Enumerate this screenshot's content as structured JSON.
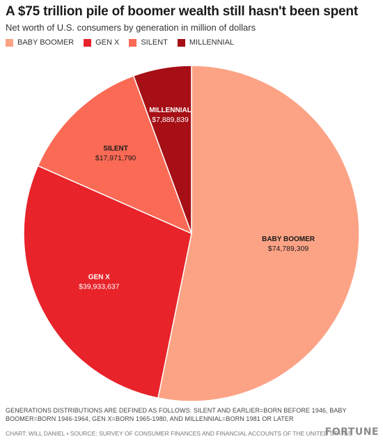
{
  "header": {
    "title": "A $75 trillion pile of boomer wealth still hasn't been spent",
    "subtitle": "Net worth of U.S. consumers by generation in million of dollars"
  },
  "legend": [
    {
      "label": "BABY BOOMER",
      "color": "#fca386"
    },
    {
      "label": "GEN X",
      "color": "#e8232a"
    },
    {
      "label": "SILENT",
      "color": "#fb6a55"
    },
    {
      "label": "MILLENNIAL",
      "color": "#a50f15"
    }
  ],
  "chart_data": {
    "type": "pie",
    "title": "A $75 trillion pile of boomer wealth still hasn't been spent",
    "subtitle": "Net worth of U.S. consumers by generation in million of dollars",
    "legend_position": "top-left",
    "slices": [
      {
        "name": "BABY BOOMER",
        "value": 74789309,
        "value_label": "$74,789,309",
        "color": "#fca386"
      },
      {
        "name": "GEN X",
        "value": 39933637,
        "value_label": "$39,933,637",
        "color": "#e8232a"
      },
      {
        "name": "SILENT",
        "value": 17971790,
        "value_label": "$17,971,790",
        "color": "#fb6a55"
      },
      {
        "name": "MILLENNIAL",
        "value": 7889839,
        "value_label": "$7,889,839",
        "color": "#a50f15"
      }
    ]
  },
  "footer": {
    "note": "GENERATIONS DISTRIBUTIONS ARE DEFINED AS FOLLOWS: SILENT AND EARLIER=BORN BEFORE 1946, BABY BOOMER=BORN 1946-1964, GEN X=BORN 1965-1980, AND MILLENNIAL=BORN 1981 OR LATER",
    "credit": "CHART: WILL DANIEL • SOURCE: SURVEY OF CONSUMER FINANCES AND FINANCIAL ACCOUNTS OF THE UNITED STATES",
    "brand": "FORTUNE"
  }
}
